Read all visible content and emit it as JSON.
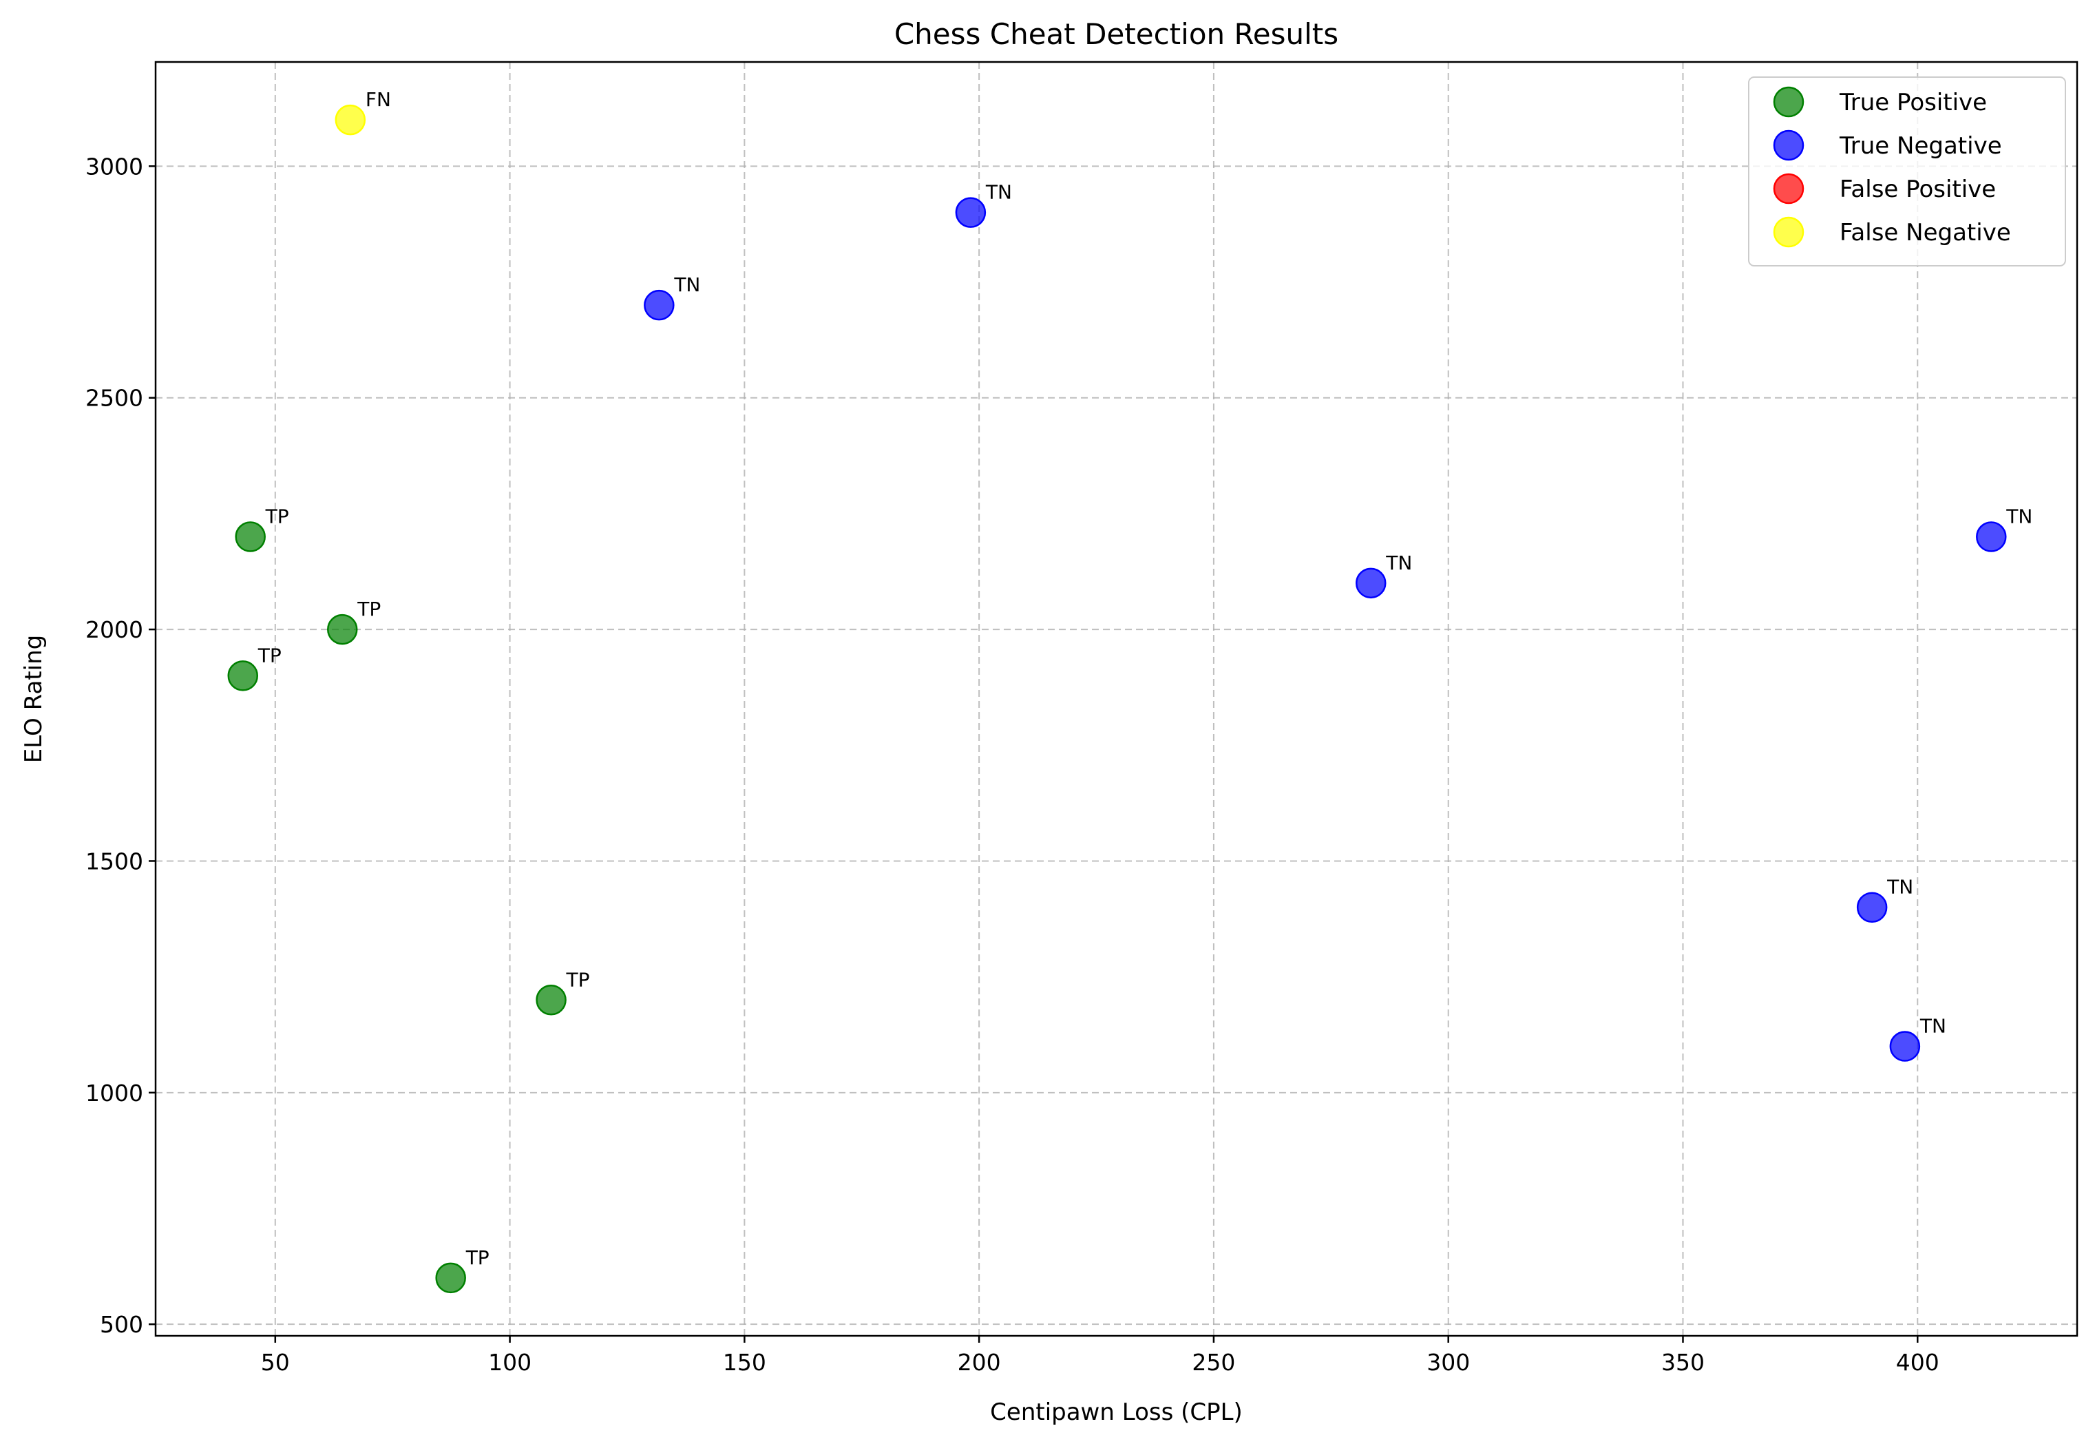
{
  "chart_data": {
    "type": "scatter",
    "title": "Chess Cheat Detection Results",
    "xlabel": "Centipawn Loss (CPL)",
    "ylabel": "ELO Rating",
    "xlim": [
      24.5,
      434
    ],
    "ylim": [
      475,
      3225
    ],
    "xticks": [
      50,
      100,
      150,
      200,
      250,
      300,
      350,
      400
    ],
    "yticks": [
      500,
      1000,
      1500,
      2000,
      2500,
      3000
    ],
    "grid": true,
    "legend_position": "top-right",
    "series": [
      {
        "name": "True Positive",
        "color": "#008000",
        "points": [
          {
            "x": 44.7,
            "y": 2200,
            "label": "TP"
          },
          {
            "x": 64.3,
            "y": 2000,
            "label": "TP"
          },
          {
            "x": 43.1,
            "y": 1900,
            "label": "TP"
          },
          {
            "x": 108.8,
            "y": 1200,
            "label": "TP"
          },
          {
            "x": 87.4,
            "y": 600,
            "label": "TP"
          }
        ]
      },
      {
        "name": "True Negative",
        "color": "#0000ff",
        "points": [
          {
            "x": 198.2,
            "y": 2900,
            "label": "TN"
          },
          {
            "x": 131.8,
            "y": 2700,
            "label": "TN"
          },
          {
            "x": 283.5,
            "y": 2100,
            "label": "TN"
          },
          {
            "x": 415.7,
            "y": 2200,
            "label": "TN"
          },
          {
            "x": 390.3,
            "y": 1400,
            "label": "TN"
          },
          {
            "x": 397.3,
            "y": 1100,
            "label": "TN"
          }
        ]
      },
      {
        "name": "False Positive",
        "color": "#ff0000",
        "points": []
      },
      {
        "name": "False Negative",
        "color": "#ffff00",
        "points": [
          {
            "x": 66.0,
            "y": 3100,
            "label": "FN"
          }
        ]
      }
    ]
  }
}
